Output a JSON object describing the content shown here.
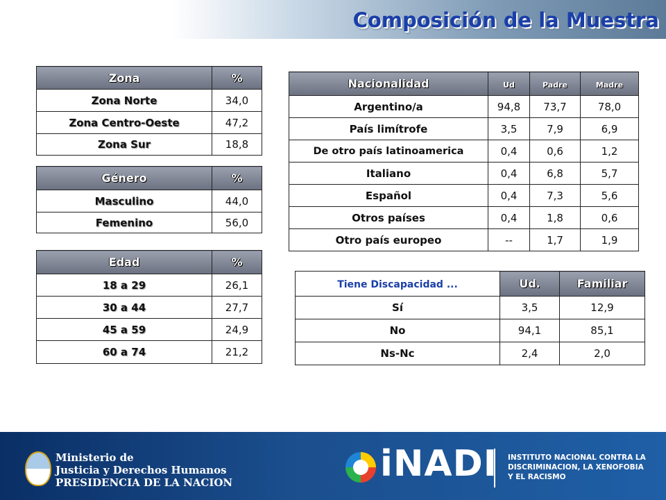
{
  "title": "Composición de la Muestra",
  "zona": {
    "header": [
      "Zona",
      "%"
    ],
    "rows": [
      {
        "label": "Zona Norte",
        "value": "34,0"
      },
      {
        "label": "Zona Centro-Oeste",
        "value": "47,2"
      },
      {
        "label": "Zona Sur",
        "value": "18,8"
      }
    ]
  },
  "genero": {
    "header": [
      "Género",
      "%"
    ],
    "rows": [
      {
        "label": "Masculino",
        "value": "44,0"
      },
      {
        "label": "Femenino",
        "value": "56,0"
      }
    ]
  },
  "edad": {
    "header": [
      "Edad",
      "%"
    ],
    "rows": [
      {
        "label": "18 a 29",
        "value": "26,1"
      },
      {
        "label": "30 a 44",
        "value": "27,7"
      },
      {
        "label": "45 a 59",
        "value": "24,9"
      },
      {
        "label": "60 a 74",
        "value": "21,2"
      }
    ]
  },
  "nacionalidad": {
    "header": [
      "Nacionalidad",
      "Ud",
      "Padre",
      "Madre"
    ],
    "rows": [
      {
        "label": "Argentino/a",
        "values": [
          "94,8",
          "73,7",
          "78,0"
        ]
      },
      {
        "label": "País limítrofe",
        "values": [
          "3,5",
          "7,9",
          "6,9"
        ]
      },
      {
        "label": "De otro país latinoamerica",
        "values": [
          "0,4",
          "0,6",
          "1,2"
        ]
      },
      {
        "label": "Italiano",
        "values": [
          "0,4",
          "6,8",
          "5,7"
        ]
      },
      {
        "label": "Español",
        "values": [
          "0,4",
          "7,3",
          "5,6"
        ]
      },
      {
        "label": "Otros países",
        "values": [
          "0,4",
          "1,8",
          "0,6"
        ]
      },
      {
        "label": "Otro país europeo",
        "values": [
          "--",
          "1,7",
          "1,9"
        ]
      }
    ]
  },
  "discapacidad": {
    "header": [
      "Tiene Discapacidad ...",
      "Ud.",
      "Familiar"
    ],
    "rows": [
      {
        "label": "Sí",
        "values": [
          "3,5",
          "12,9"
        ]
      },
      {
        "label": "No",
        "values": [
          "94,1",
          "85,1"
        ]
      },
      {
        "label": "Ns-Nc",
        "values": [
          "2,4",
          "2,0"
        ]
      }
    ]
  },
  "footer": {
    "ministerio": [
      "Ministerio de",
      "Justicia y Derechos Humanos",
      "PRESIDENCIA DE LA NACION"
    ],
    "inadi_logo": "iNADI",
    "instituto": [
      "INSTITUTO NACIONAL CONTRA LA",
      "DISCRIMINACION, LA XENOFOBIA",
      "Y EL RACISMO"
    ]
  },
  "colors": {
    "title": "#1a3fa8",
    "header_gray": "#7d8391",
    "footer_blue": "#1b4f8e"
  },
  "icons": [
    "argentina-seal-icon",
    "inadi-logo-icon"
  ]
}
